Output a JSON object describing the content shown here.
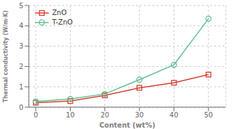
{
  "chart_data": {
    "type": "line",
    "xlabel": "Content (wt%)",
    "ylabel": "Thermal conductivity (W/m·K)",
    "x": [
      0,
      10,
      20,
      30,
      40,
      50
    ],
    "series": [
      {
        "name": "ZnO",
        "color": "#d63b2f",
        "marker": "square",
        "values": [
          0.22,
          0.3,
          0.58,
          0.95,
          1.2,
          1.6
        ]
      },
      {
        "name": "T-ZnO",
        "color": "#5bbf8e",
        "marker": "circle",
        "values": [
          0.28,
          0.4,
          0.65,
          1.35,
          2.08,
          4.35
        ]
      }
    ],
    "xlim": [
      -2,
      55
    ],
    "xticks": [
      0,
      10,
      20,
      30,
      40,
      50
    ],
    "ylim": [
      0,
      5
    ],
    "yticks": [
      0,
      1,
      2,
      3,
      4,
      5
    ],
    "legend": "upper left"
  }
}
